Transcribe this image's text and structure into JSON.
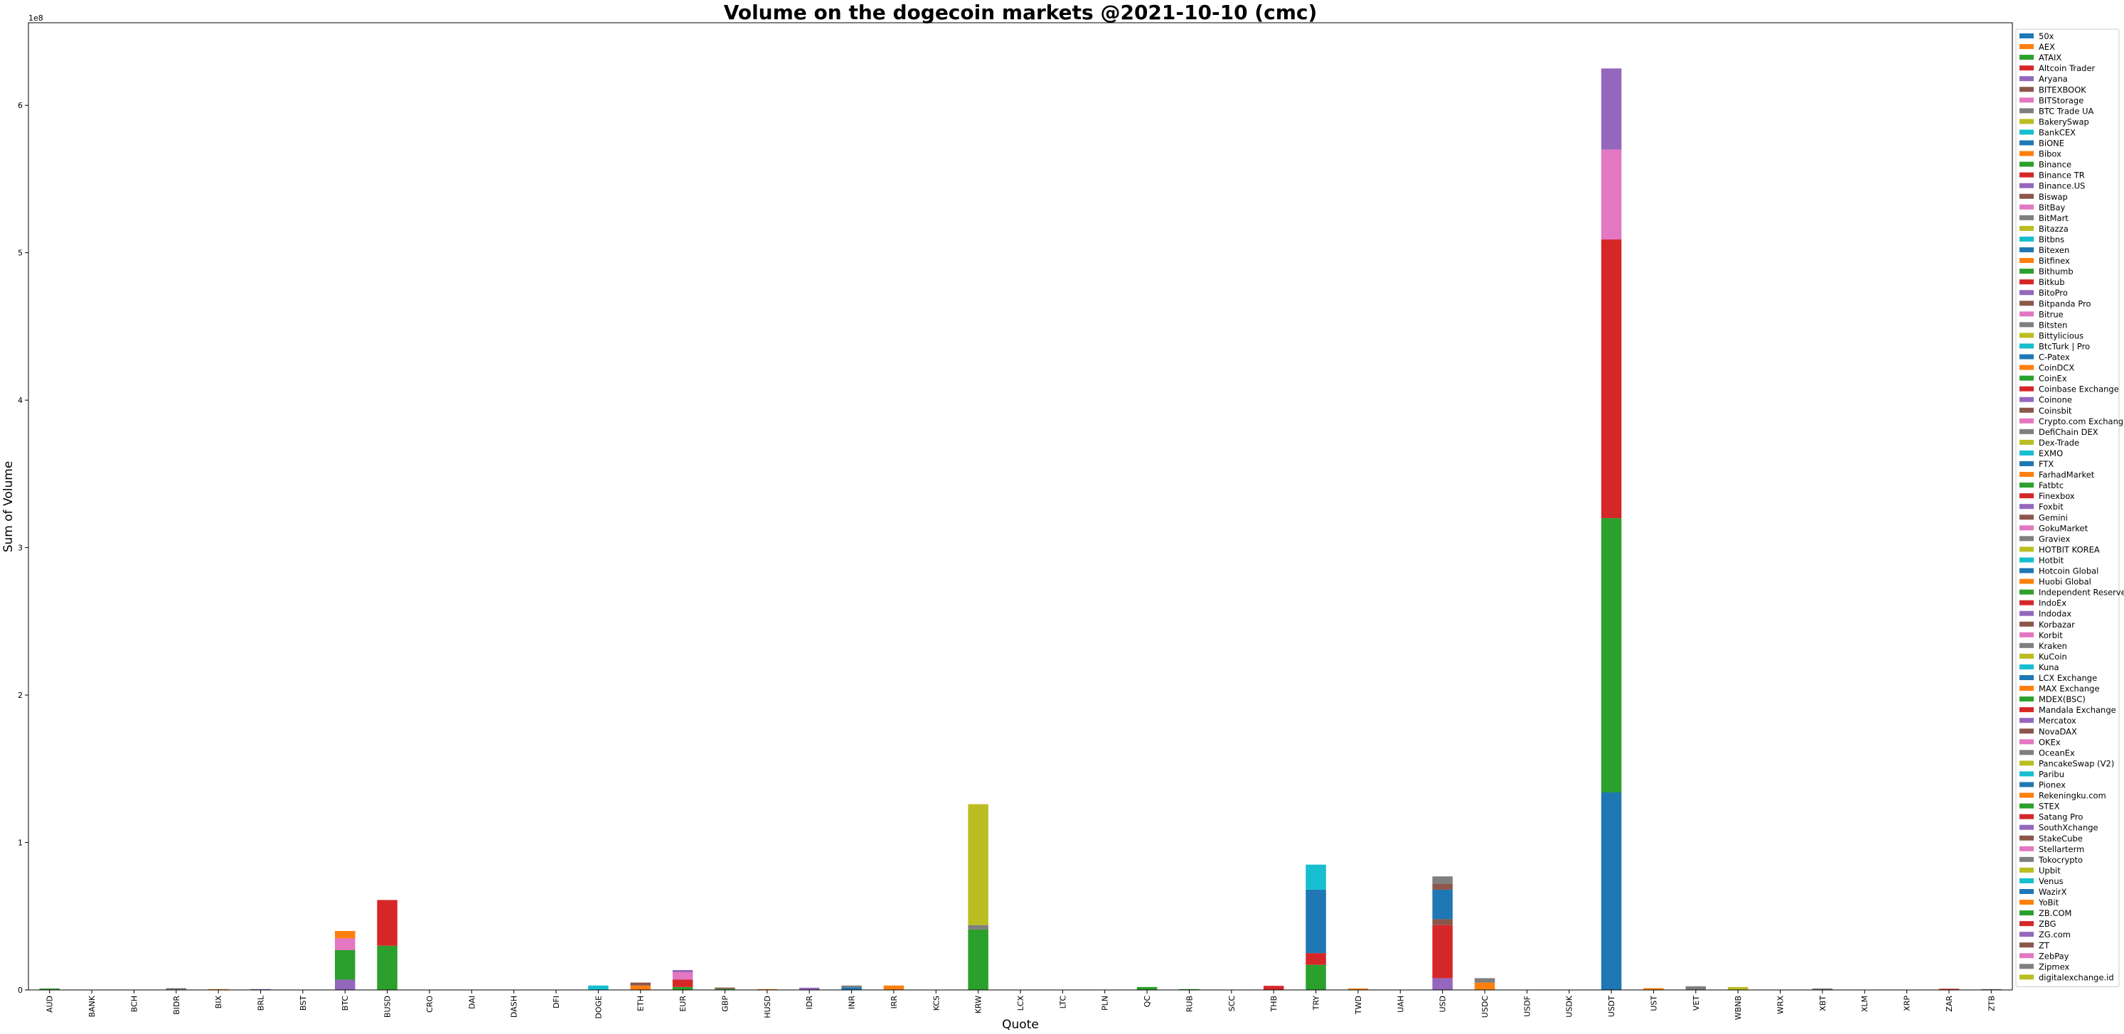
{
  "chart_data": {
    "type": "bar",
    "stacked": true,
    "title": "Volume on the dogecoin markets @2021-10-10 (cmc)",
    "xlabel": "Quote",
    "ylabel": "Sum of Volume",
    "y_scale_label": "1e8",
    "y_multiplier": 100000000,
    "ylim": [
      0,
      6.56
    ],
    "y_ticks": [
      0,
      1,
      2,
      3,
      4,
      5,
      6
    ],
    "categories": [
      "AUD",
      "BANK",
      "BCH",
      "BIDR",
      "BIX",
      "BRL",
      "BST",
      "BTC",
      "BUSD",
      "CRO",
      "DAI",
      "DASH",
      "DFI",
      "DOGE",
      "ETH",
      "EUR",
      "GBP",
      "HUSD",
      "IDR",
      "INR",
      "IRR",
      "KCS",
      "KRW",
      "LCX",
      "LTC",
      "PLN",
      "QC",
      "RUB",
      "SCC",
      "THB",
      "TRY",
      "TWD",
      "UAH",
      "USD",
      "USDC",
      "USDF",
      "USDK",
      "USDT",
      "UST",
      "VET",
      "WBNB",
      "WRX",
      "XBT",
      "XLM",
      "XRP",
      "ZAR",
      "ZTB"
    ],
    "exchanges": [
      "50x",
      "AEX",
      "ATAIX",
      "Altcoin Trader",
      "Aryana",
      "BITEXBOOK",
      "BITStorage",
      "BTC Trade UA",
      "BakerySwap",
      "BankCEX",
      "BiONE",
      "Bibox",
      "Binance",
      "Binance TR",
      "Binance.US",
      "Biswap",
      "BitBay",
      "BitMart",
      "Bitazza",
      "Bitbns",
      "Bitexen",
      "Bitfinex",
      "Bithumb",
      "Bitkub",
      "BitoPro",
      "Bitpanda Pro",
      "Bitrue",
      "Bitsten",
      "Bittylicious",
      "BtcTurk | Pro",
      "C-Patex",
      "CoinDCX",
      "CoinEx",
      "Coinbase Exchange",
      "Coinone",
      "Coinsbit",
      "Crypto.com Exchange",
      "DefiChain DEX",
      "Dex-Trade",
      "EXMO",
      "FTX",
      "FarhadMarket",
      "Fatbtc",
      "Finexbox",
      "Foxbit",
      "Gemini",
      "GokuMarket",
      "Graviex",
      "HOTBIT KOREA",
      "Hotbit",
      "Hotcoin Global",
      "Huobi Global",
      "Independent Reserve",
      "IndoEx",
      "Indodax",
      "Korbazar",
      "Korbit",
      "Kraken",
      "KuCoin",
      "Kuna",
      "LCX Exchange",
      "MAX Exchange",
      "MDEX(BSC)",
      "Mandala Exchange",
      "Mercatox",
      "NovaDAX",
      "OKEx",
      "OceanEx",
      "PancakeSwap (V2)",
      "Paribu",
      "Pionex",
      "Rekeningku.com",
      "STEX",
      "Satang Pro",
      "SouthXchange",
      "StakeCube",
      "Stellarterm",
      "Tokocrypto",
      "Upbit",
      "Venus",
      "WazirX",
      "YoBit",
      "ZB.COM",
      "ZBG",
      "ZG.com",
      "ZT",
      "ZebPay",
      "Zipmex",
      "digitalexchange.id"
    ],
    "palette": [
      "#1f77b4",
      "#ff7f0e",
      "#2ca02c",
      "#d62728",
      "#9467bd",
      "#8c564b",
      "#e377c2",
      "#7f7f7f",
      "#bcbd22",
      "#17becf"
    ],
    "stacks": {
      "AUD": [
        [
          57,
          0.004
        ],
        [
          2,
          0.002
        ]
      ],
      "BIDR": [
        [
          77,
          0.012
        ]
      ],
      "BIX": [
        [
          11,
          0.003
        ]
      ],
      "BRL": [
        [
          44,
          0.003
        ]
      ],
      "BTC": [
        [
          14,
          0.07
        ],
        [
          12,
          0.2
        ],
        [
          36,
          0.08
        ],
        [
          11,
          0.05
        ]
      ],
      "BUSD": [
        [
          12,
          0.3
        ],
        [
          13,
          0.31
        ]
      ],
      "DOGE": [
        [
          29,
          0.03
        ]
      ],
      "ETH": [
        [
          21,
          0.03
        ],
        [
          15,
          0.02
        ]
      ],
      "EUR": [
        [
          12,
          0.02
        ],
        [
          33,
          0.05
        ],
        [
          36,
          0.05
        ],
        [
          4,
          0.015
        ]
      ],
      "GBP": [
        [
          12,
          0.008
        ],
        [
          5,
          0.008
        ]
      ],
      "HUSD": [
        [
          51,
          0.003
        ]
      ],
      "IDR": [
        [
          54,
          0.015
        ]
      ],
      "INR": [
        [
          80,
          0.018
        ],
        [
          7,
          0.012
        ]
      ],
      "IRR": [
        [
          1,
          0.03
        ]
      ],
      "KRW": [
        [
          12,
          0.41
        ],
        [
          7,
          0.03
        ],
        [
          78,
          0.82
        ]
      ],
      "QC": [
        [
          82,
          0.02
        ]
      ],
      "RUB": [
        [
          42,
          0.004
        ]
      ],
      "THB": [
        [
          73,
          0.028
        ]
      ],
      "TRY": [
        [
          72,
          0.17
        ],
        [
          23,
          0.08
        ],
        [
          40,
          0.43
        ],
        [
          69,
          0.17
        ]
      ],
      "TWD": [
        [
          61,
          0.01
        ]
      ],
      "USD": [
        [
          44,
          0.08
        ],
        [
          3,
          0.36
        ],
        [
          5,
          0.04
        ],
        [
          0,
          0.2
        ],
        [
          45,
          0.04
        ],
        [
          57,
          0.05
        ]
      ],
      "USDC": [
        [
          1,
          0.05
        ],
        [
          7,
          0.03
        ]
      ],
      "USDT": [
        [
          0,
          1.34
        ],
        [
          2,
          1.86
        ],
        [
          3,
          1.89
        ],
        [
          6,
          0.61
        ],
        [
          4,
          0.55
        ]
      ],
      "UST": [
        [
          51,
          0.012
        ]
      ],
      "VET": [
        [
          7,
          0.025
        ]
      ],
      "WBNB": [
        [
          68,
          0.02
        ]
      ],
      "XBT": [
        [
          7,
          0.01
        ]
      ],
      "ZAR": [
        [
          3,
          0.008
        ]
      ],
      "ZTB": [
        [
          7,
          0.005
        ]
      ]
    }
  }
}
